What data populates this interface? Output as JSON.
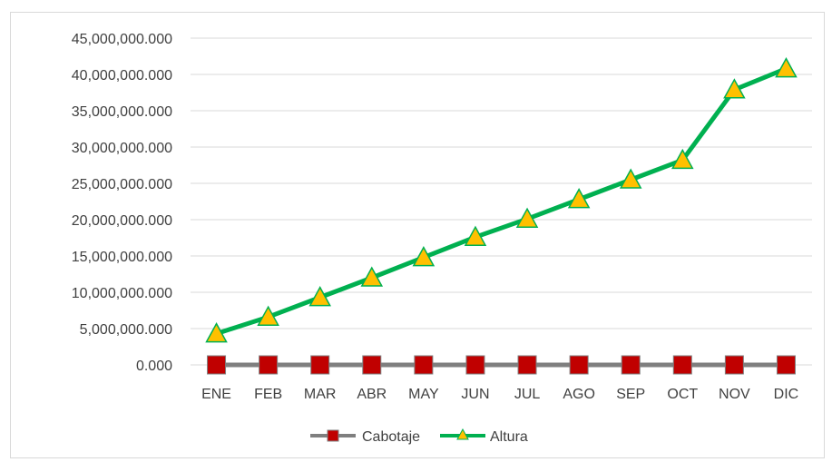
{
  "chart_data": {
    "type": "line",
    "title": "",
    "xlabel": "",
    "ylabel": "",
    "categories": [
      "ENE",
      "FEB",
      "MAR",
      "ABR",
      "MAY",
      "JUN",
      "JUL",
      "AGO",
      "SEP",
      "OCT",
      "NOV",
      "DIC"
    ],
    "ylim": [
      0,
      45000000
    ],
    "yticks": [
      0,
      5000000,
      10000000,
      15000000,
      20000000,
      25000000,
      30000000,
      35000000,
      40000000,
      45000000
    ],
    "ytick_labels": [
      "0.000",
      "5,000,000.000",
      "10,000,000.000",
      "15,000,000.000",
      "20,000,000.000",
      "25,000,000.000",
      "30,000,000.000",
      "35,000,000.000",
      "40,000,000.000",
      "45,000,000.000"
    ],
    "grid": true,
    "legend_position": "bottom",
    "series": [
      {
        "name": "Cabotaje",
        "values": [
          0,
          0,
          0,
          0,
          0,
          0,
          0,
          0,
          0,
          0,
          0,
          0
        ],
        "line_color": "#7f7f7f",
        "marker": "square",
        "marker_color": "#c00000"
      },
      {
        "name": "Altura",
        "values": [
          4300000,
          6600000,
          9300000,
          12000000,
          14800000,
          17600000,
          20100000,
          22800000,
          25500000,
          28200000,
          37900000,
          40800000
        ],
        "line_color": "#00b050",
        "marker": "triangle",
        "marker_color": "#ffc000"
      }
    ]
  }
}
